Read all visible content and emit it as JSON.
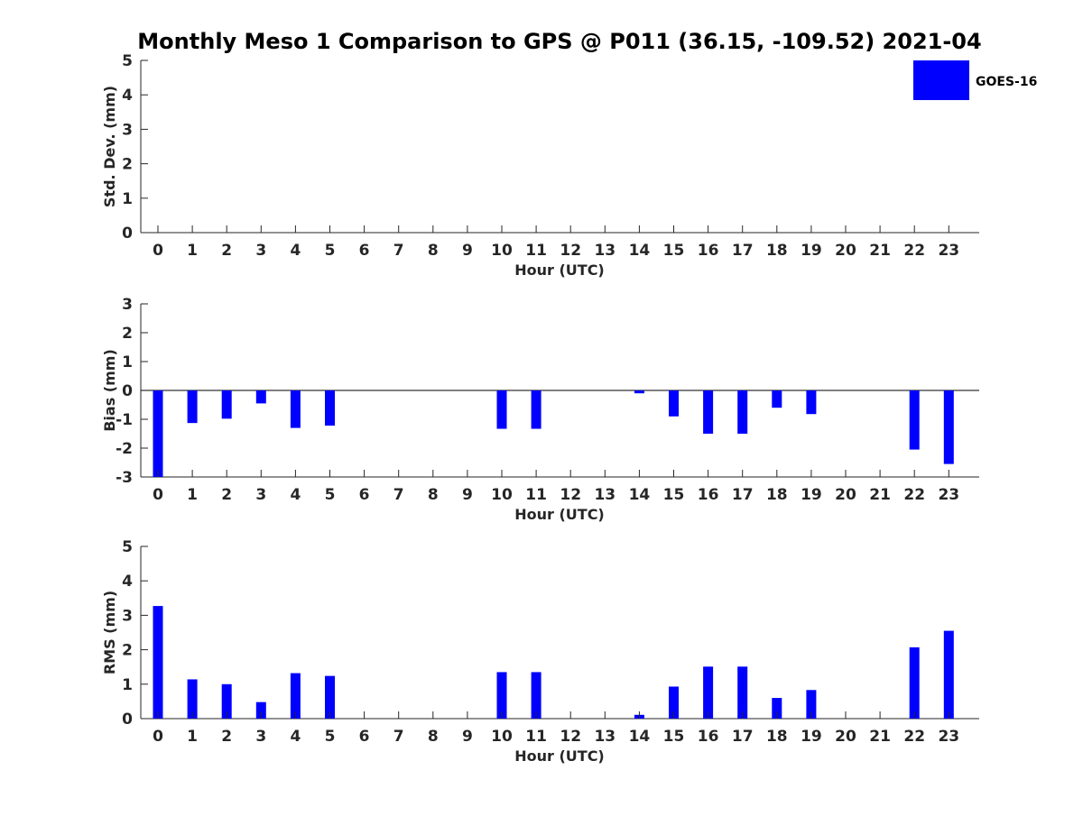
{
  "title": "Monthly Meso 1 Comparison to GPS @ P011 (36.15, -109.52) 2021-04",
  "legend": {
    "label": "GOES-16",
    "placement": "top-right"
  },
  "colors": {
    "bar": "#0000FF",
    "axis": "#262626",
    "background": "#FFFFFF"
  },
  "chart_data": [
    {
      "type": "bar",
      "xlabel": "Hour (UTC)",
      "ylabel": "Std. Dev. (mm)",
      "categories": [
        "0",
        "1",
        "2",
        "3",
        "4",
        "5",
        "6",
        "7",
        "8",
        "9",
        "10",
        "11",
        "12",
        "13",
        "14",
        "15",
        "16",
        "17",
        "18",
        "19",
        "20",
        "21",
        "22",
        "23"
      ],
      "values": [
        null,
        null,
        null,
        null,
        null,
        null,
        null,
        null,
        null,
        null,
        null,
        null,
        null,
        null,
        null,
        null,
        null,
        null,
        null,
        null,
        null,
        null,
        null,
        null
      ],
      "ylim": [
        0,
        5
      ],
      "yticks": [
        0,
        1,
        2,
        3,
        4,
        5
      ],
      "grid": false,
      "series": [
        {
          "name": "GOES-16",
          "values": [
            null,
            null,
            null,
            null,
            null,
            null,
            null,
            null,
            null,
            null,
            null,
            null,
            null,
            null,
            null,
            null,
            null,
            null,
            null,
            null,
            null,
            null,
            null,
            null
          ]
        }
      ]
    },
    {
      "type": "bar",
      "xlabel": "Hour (UTC)",
      "ylabel": "Bias (mm)",
      "categories": [
        "0",
        "1",
        "2",
        "3",
        "4",
        "5",
        "6",
        "7",
        "8",
        "9",
        "10",
        "11",
        "12",
        "13",
        "14",
        "15",
        "16",
        "17",
        "18",
        "19",
        "20",
        "21",
        "22",
        "23"
      ],
      "values": [
        -3.25,
        -1.13,
        -0.98,
        -0.45,
        -1.3,
        -1.22,
        null,
        null,
        null,
        null,
        -1.33,
        -1.33,
        null,
        null,
        -0.1,
        -0.9,
        -1.5,
        -1.5,
        -0.6,
        -0.82,
        null,
        null,
        -2.05,
        -2.55
      ],
      "ylim": [
        -3,
        3
      ],
      "yticks": [
        -3,
        -2,
        -1,
        0,
        1,
        2,
        3
      ],
      "grid": false,
      "series": [
        {
          "name": "GOES-16",
          "values": [
            -3.25,
            -1.13,
            -0.98,
            -0.45,
            -1.3,
            -1.22,
            null,
            null,
            null,
            null,
            -1.33,
            -1.33,
            null,
            null,
            -0.1,
            -0.9,
            -1.5,
            -1.5,
            -0.6,
            -0.82,
            null,
            null,
            -2.05,
            -2.55
          ]
        }
      ]
    },
    {
      "type": "bar",
      "xlabel": "Hour (UTC)",
      "ylabel": "RMS (mm)",
      "categories": [
        "0",
        "1",
        "2",
        "3",
        "4",
        "5",
        "6",
        "7",
        "8",
        "9",
        "10",
        "11",
        "12",
        "13",
        "14",
        "15",
        "16",
        "17",
        "18",
        "19",
        "20",
        "21",
        "22",
        "23"
      ],
      "values": [
        3.27,
        1.14,
        1.0,
        0.48,
        1.32,
        1.24,
        null,
        null,
        null,
        null,
        1.35,
        1.35,
        null,
        null,
        0.11,
        0.93,
        1.51,
        1.51,
        0.6,
        0.83,
        null,
        null,
        2.07,
        2.55
      ],
      "ylim": [
        0,
        5
      ],
      "yticks": [
        0,
        1,
        2,
        3,
        4,
        5
      ],
      "grid": false,
      "series": [
        {
          "name": "GOES-16",
          "values": [
            3.27,
            1.14,
            1.0,
            0.48,
            1.32,
            1.24,
            null,
            null,
            null,
            null,
            1.35,
            1.35,
            null,
            null,
            0.11,
            0.93,
            1.51,
            1.51,
            0.6,
            0.83,
            null,
            null,
            2.07,
            2.55
          ]
        }
      ]
    }
  ]
}
